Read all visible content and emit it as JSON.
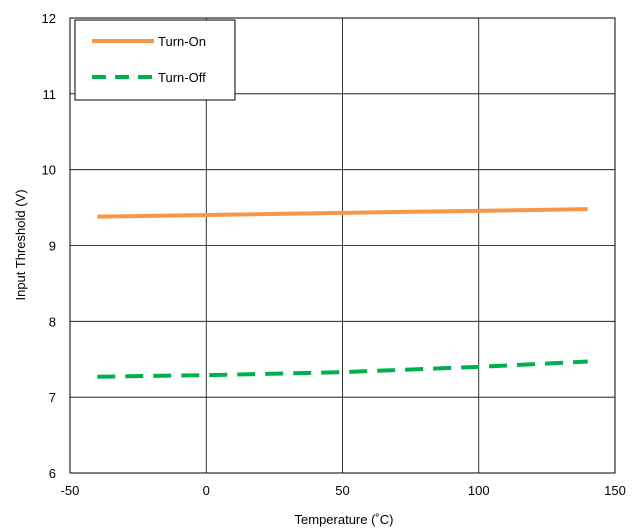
{
  "chart_data": {
    "type": "line",
    "xlabel": "Temperature (˚C)",
    "ylabel": "Input Threshold (V)",
    "xlim": [
      -50,
      150
    ],
    "ylim": [
      6,
      12
    ],
    "xticks": [
      -50,
      0,
      50,
      100,
      150
    ],
    "yticks": [
      6,
      7,
      8,
      9,
      10,
      11,
      12
    ],
    "xtick_labels": [
      "-50",
      "0",
      "50",
      "100",
      "150"
    ],
    "ytick_labels": [
      "6",
      "7",
      "8",
      "9",
      "10",
      "11",
      "12"
    ],
    "grid": true,
    "legend_position": "top-left",
    "series": [
      {
        "name": "Turn-On",
        "color": "#F79646",
        "style": "solid",
        "x": [
          -40,
          140
        ],
        "y": [
          9.38,
          9.48
        ]
      },
      {
        "name": "Turn-Off",
        "color": "#00B050",
        "style": "dashed",
        "x": [
          -40,
          0,
          50,
          100,
          140
        ],
        "y": [
          7.27,
          7.29,
          7.33,
          7.4,
          7.47
        ]
      }
    ]
  }
}
